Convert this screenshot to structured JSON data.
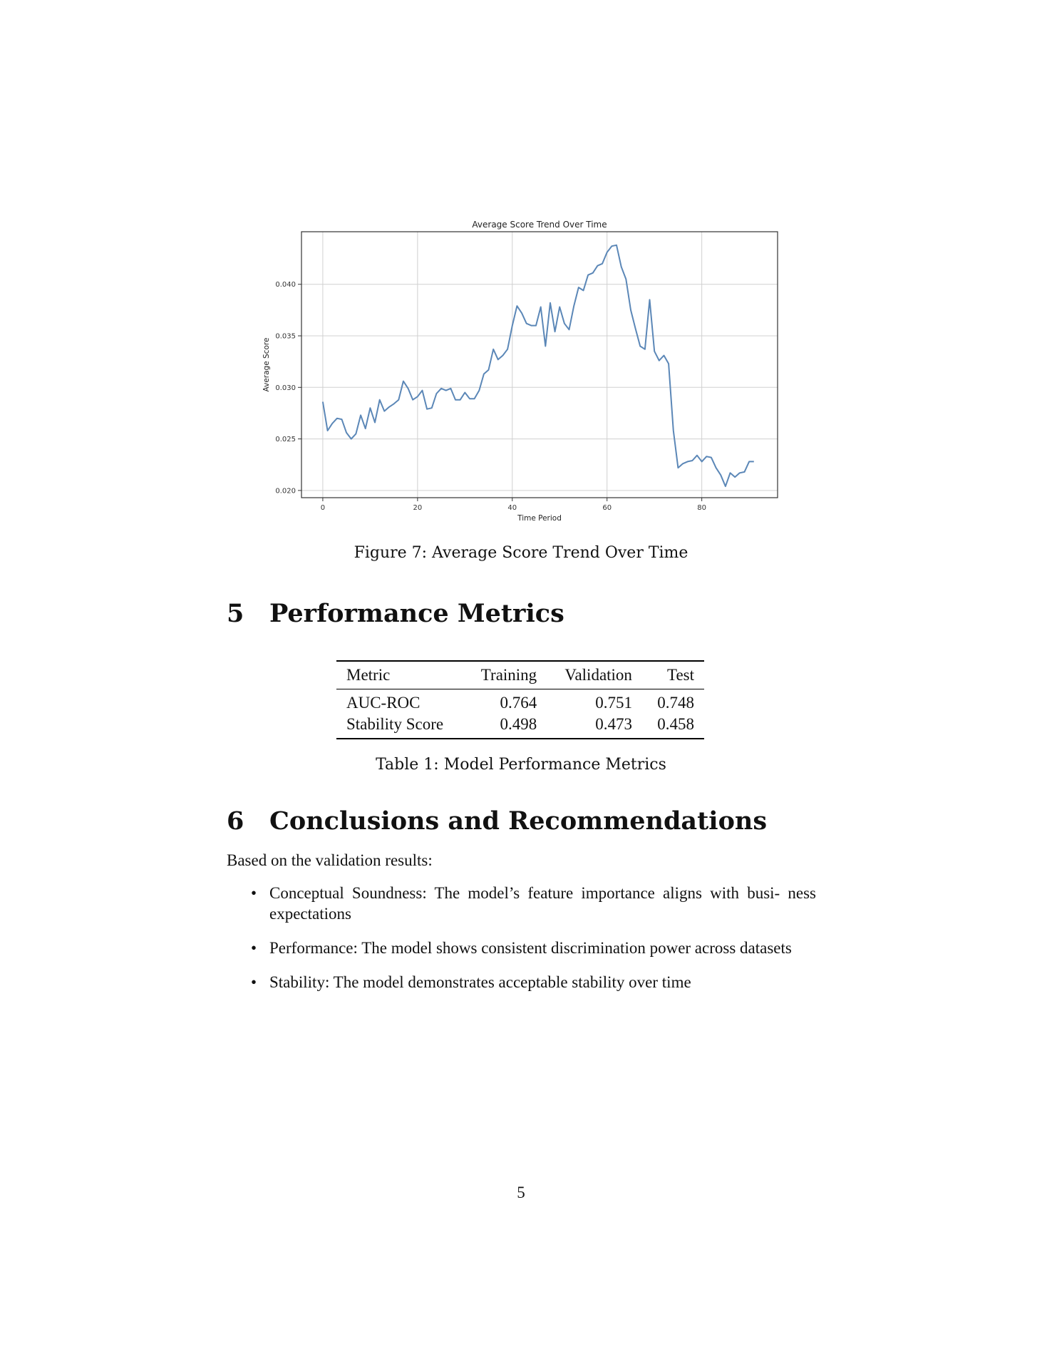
{
  "figure": {
    "caption": "Figure 7: Average Score Trend Over Time",
    "chart_data": {
      "type": "line",
      "title": "Average Score Trend Over Time",
      "xlabel": "Time Period",
      "ylabel": "Average Score",
      "xlim": [
        -4.5,
        96
      ],
      "ylim": [
        0.0193,
        0.0451
      ],
      "xticks": [
        0,
        20,
        40,
        60,
        80
      ],
      "yticks": [
        0.02,
        0.025,
        0.03,
        0.035,
        0.04
      ],
      "ytick_labels": [
        "0.020",
        "0.025",
        "0.030",
        "0.035",
        "0.040"
      ],
      "grid": true,
      "line_color": "#5b87b7",
      "x": [
        0,
        1,
        2,
        3,
        4,
        5,
        6,
        7,
        8,
        9,
        10,
        11,
        12,
        13,
        14,
        15,
        16,
        17,
        18,
        19,
        20,
        21,
        22,
        23,
        24,
        25,
        26,
        27,
        28,
        29,
        30,
        31,
        32,
        33,
        34,
        35,
        36,
        37,
        38,
        39,
        40,
        41,
        42,
        43,
        44,
        45,
        46,
        47,
        48,
        49,
        50,
        51,
        52,
        53,
        54,
        55,
        56,
        57,
        58,
        59,
        60,
        61,
        62,
        63,
        64,
        65,
        66,
        67,
        68,
        69,
        70,
        71,
        72,
        73,
        74,
        75,
        76,
        77,
        78,
        79,
        80,
        81,
        82,
        83,
        84,
        85,
        86,
        87,
        88,
        89,
        90,
        91
      ],
      "y": [
        0.0286,
        0.0258,
        0.0265,
        0.027,
        0.0269,
        0.0256,
        0.025,
        0.0255,
        0.0273,
        0.026,
        0.028,
        0.0266,
        0.0288,
        0.0277,
        0.0281,
        0.0284,
        0.0288,
        0.0306,
        0.0299,
        0.0288,
        0.0291,
        0.0297,
        0.0279,
        0.028,
        0.0294,
        0.0299,
        0.0297,
        0.0299,
        0.0288,
        0.0288,
        0.0295,
        0.0289,
        0.0289,
        0.0297,
        0.0313,
        0.0317,
        0.0337,
        0.0327,
        0.0331,
        0.0337,
        0.036,
        0.0379,
        0.0372,
        0.0362,
        0.036,
        0.036,
        0.0378,
        0.034,
        0.0382,
        0.0354,
        0.0378,
        0.0362,
        0.0356,
        0.0379,
        0.0397,
        0.0394,
        0.0409,
        0.0411,
        0.0418,
        0.042,
        0.0431,
        0.0437,
        0.0438,
        0.0417,
        0.0405,
        0.0375,
        0.0357,
        0.034,
        0.0337,
        0.0385,
        0.0335,
        0.0326,
        0.0331,
        0.0323,
        0.0258,
        0.0222,
        0.0226,
        0.0228,
        0.0229,
        0.0234,
        0.0228,
        0.0233,
        0.0232,
        0.0222,
        0.0215,
        0.0204,
        0.0217,
        0.0213,
        0.0217,
        0.0218,
        0.0228,
        0.0228
      ]
    }
  },
  "sections": {
    "performance": {
      "number": "5",
      "title": "Performance Metrics"
    },
    "conclusions": {
      "number": "6",
      "title": "Conclusions and Recommendations"
    }
  },
  "table": {
    "caption": "Table 1: Model Performance Metrics",
    "headers": [
      "Metric",
      "Training",
      "Validation",
      "Test"
    ],
    "rows": [
      [
        "AUC-ROC",
        "0.764",
        "0.751",
        "0.748"
      ],
      [
        "Stability Score",
        "0.498",
        "0.473",
        "0.458"
      ]
    ]
  },
  "conclusions": {
    "intro": "Based on the validation results:",
    "bullets": [
      "Conceptual Soundness: The model’s feature importance aligns with busi- ness expectations",
      "Performance: The model shows consistent discrimination power across datasets",
      "Stability: The model demonstrates acceptable stability over time"
    ]
  },
  "page_number": "5"
}
